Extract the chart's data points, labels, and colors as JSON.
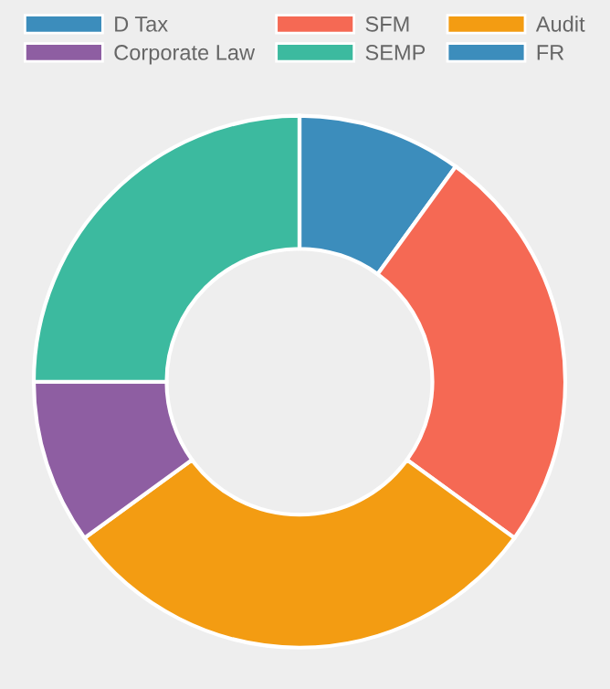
{
  "chart_data": {
    "type": "donut",
    "categories": [
      "D Tax",
      "SFM",
      "Audit",
      "Corporate Law",
      "SEMP",
      "FR"
    ],
    "values": [
      10,
      25,
      30,
      10,
      25,
      0
    ],
    "colors": [
      "#3c8dbc",
      "#f56954",
      "#f39c12",
      "#8e5ea2",
      "#3cba9f",
      "#3c8dbc"
    ],
    "legend": "top"
  }
}
